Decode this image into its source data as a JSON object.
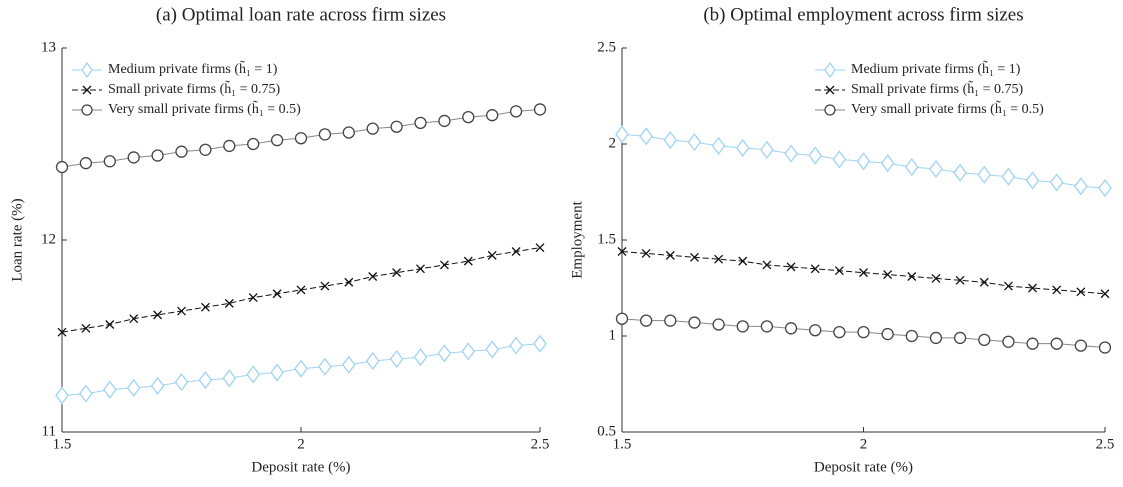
{
  "chart_data": [
    {
      "type": "line",
      "title": "(a) Optimal loan rate across firm sizes",
      "x_label": "Deposit rate (%)",
      "y_label": "Loan rate (%)",
      "x": [
        1.5,
        1.55,
        1.6,
        1.65,
        1.7,
        1.75,
        1.8,
        1.85,
        1.9,
        1.95,
        2,
        2.05,
        2.1,
        2.15,
        2.2,
        2.25,
        2.3,
        2.35,
        2.4,
        2.45,
        2.5
      ],
      "xlim": [
        1.5,
        2.5
      ],
      "xticks": [
        1.5,
        2,
        2.5
      ],
      "ylim": [
        11,
        13
      ],
      "yticks": [
        11,
        12,
        13
      ],
      "legend": "upper left",
      "series": [
        {
          "name": "Medium private firms (h̃₁ = 1)",
          "color": "#9fd3f5",
          "marker": "diamond",
          "line": "solid",
          "values": [
            11.19,
            11.2,
            11.22,
            11.23,
            11.24,
            11.26,
            11.27,
            11.28,
            11.3,
            11.31,
            11.33,
            11.34,
            11.35,
            11.37,
            11.38,
            11.39,
            11.41,
            11.42,
            11.43,
            11.45,
            11.46
          ]
        },
        {
          "name": "Small private firms (h̃₁ = 0.75)",
          "color": "#111111",
          "marker": "x",
          "line": "dashed",
          "values": [
            11.52,
            11.54,
            11.56,
            11.59,
            11.61,
            11.63,
            11.65,
            11.67,
            11.7,
            11.72,
            11.74,
            11.76,
            11.78,
            11.81,
            11.83,
            11.85,
            11.87,
            11.89,
            11.92,
            11.94,
            11.96
          ]
        },
        {
          "name": "Very small private firms (h̃₁ = 0.5)",
          "color": "#444444",
          "marker": "circle",
          "line": "solid",
          "values": [
            12.38,
            12.4,
            12.41,
            12.43,
            12.44,
            12.46,
            12.47,
            12.49,
            12.5,
            12.52,
            12.53,
            12.55,
            12.56,
            12.58,
            12.59,
            12.61,
            12.62,
            12.64,
            12.65,
            12.67,
            12.68
          ]
        }
      ]
    },
    {
      "type": "line",
      "title": "(b) Optimal employment across firm sizes",
      "x_label": "Deposit rate (%)",
      "y_label": "Employment",
      "x": [
        1.5,
        1.55,
        1.6,
        1.65,
        1.7,
        1.75,
        1.8,
        1.85,
        1.9,
        1.95,
        2,
        2.05,
        2.1,
        2.15,
        2.2,
        2.25,
        2.3,
        2.35,
        2.4,
        2.45,
        2.5
      ],
      "xlim": [
        1.5,
        2.5
      ],
      "xticks": [
        1.5,
        2,
        2.5
      ],
      "ylim": [
        0.5,
        2.5
      ],
      "yticks": [
        0.5,
        1,
        1.5,
        2,
        2.5
      ],
      "legend": "upper right",
      "series": [
        {
          "name": "Medium private firms (h̃₁ = 1)",
          "color": "#9fd3f5",
          "marker": "diamond",
          "line": "solid",
          "values": [
            2.05,
            2.04,
            2.02,
            2.01,
            1.99,
            1.98,
            1.97,
            1.95,
            1.94,
            1.92,
            1.91,
            1.9,
            1.88,
            1.87,
            1.85,
            1.84,
            1.83,
            1.81,
            1.8,
            1.78,
            1.77
          ]
        },
        {
          "name": "Small private firms (h̃₁ = 0.75)",
          "color": "#111111",
          "marker": "x",
          "line": "dashed",
          "values": [
            1.44,
            1.43,
            1.42,
            1.41,
            1.4,
            1.39,
            1.37,
            1.36,
            1.35,
            1.34,
            1.33,
            1.32,
            1.31,
            1.3,
            1.29,
            1.28,
            1.26,
            1.25,
            1.24,
            1.23,
            1.22
          ]
        },
        {
          "name": "Very small private firms (h̃₁ = 0.5)",
          "color": "#444444",
          "marker": "circle",
          "line": "solid",
          "values": [
            1.09,
            1.08,
            1.08,
            1.07,
            1.06,
            1.05,
            1.05,
            1.04,
            1.03,
            1.02,
            1.02,
            1.01,
            1.0,
            0.99,
            0.99,
            0.98,
            0.97,
            0.96,
            0.96,
            0.95,
            0.94
          ]
        }
      ]
    }
  ]
}
